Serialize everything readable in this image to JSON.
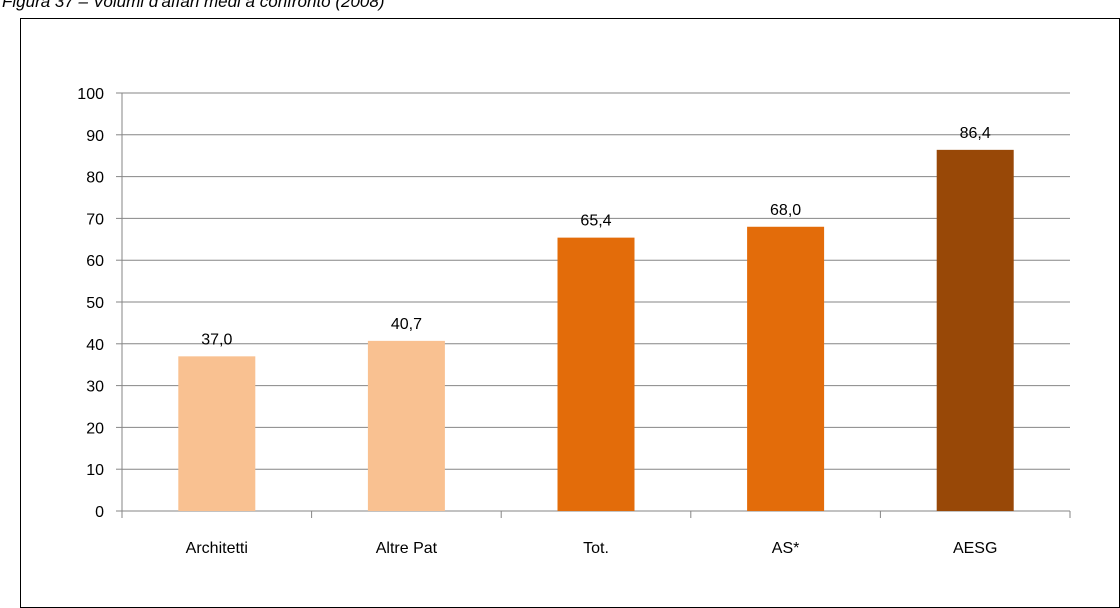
{
  "caption": "Figura 37 – Volumi d'affari medi a confronto (2008)",
  "chart_data": {
    "type": "bar",
    "categories": [
      "Architetti",
      "Altre Pat",
      "Tot.",
      "AS*",
      "AESG"
    ],
    "values": [
      37.0,
      40.7,
      65.4,
      68.0,
      86.4
    ],
    "value_labels": [
      "37,0",
      "40,7",
      "65,4",
      "68,0",
      "86,4"
    ],
    "colors": [
      "#f9c191",
      "#f9c191",
      "#e36c0a",
      "#e36c0a",
      "#984807"
    ],
    "ylim": [
      0,
      100
    ],
    "yticks": [
      0,
      10,
      20,
      30,
      40,
      50,
      60,
      70,
      80,
      90,
      100
    ],
    "grid": true,
    "gridline_color": "#868686",
    "axis_color": "#868686",
    "title": "",
    "xlabel": "",
    "ylabel": ""
  }
}
